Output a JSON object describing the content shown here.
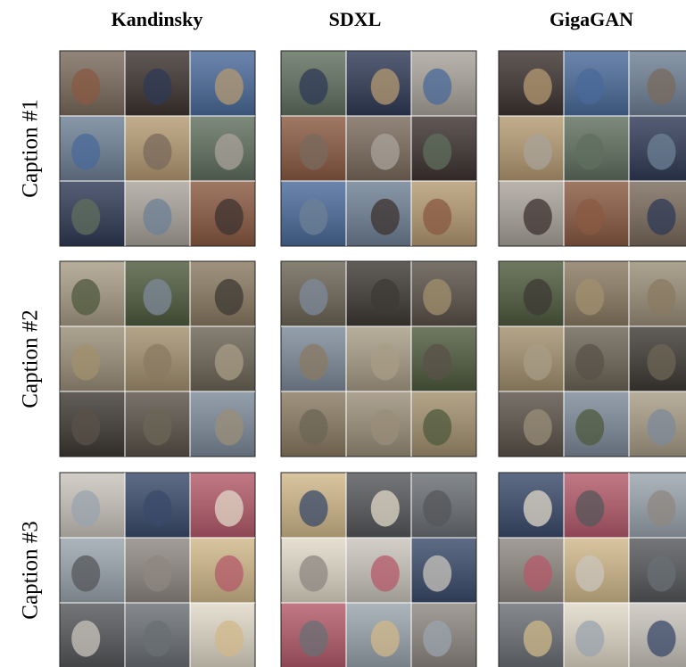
{
  "columns": [
    "Kandinsky",
    "SDXL",
    "GigaGAN"
  ],
  "rows": [
    "Caption #1",
    "Caption #2",
    "Caption #3"
  ]
}
